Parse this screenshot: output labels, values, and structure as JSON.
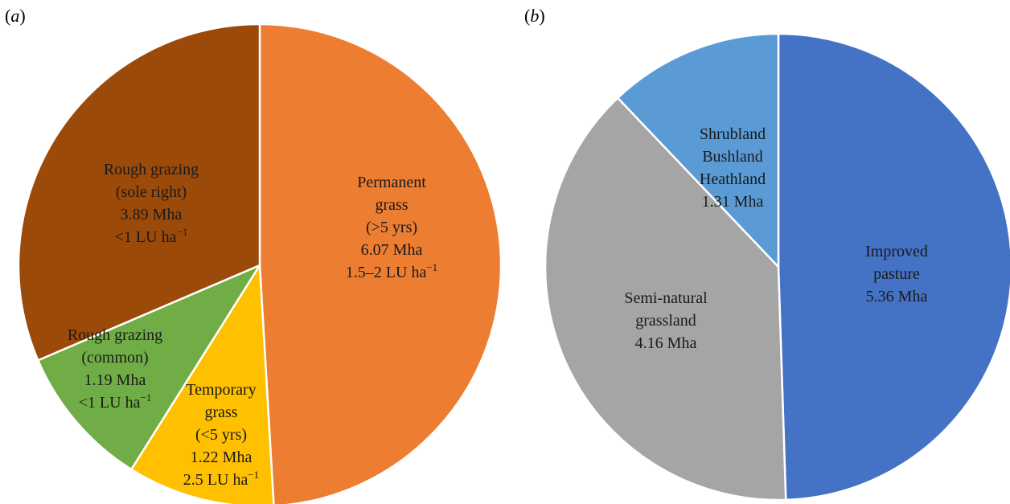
{
  "chart_data": [
    {
      "type": "pie",
      "panel": "a",
      "unit": "Mha",
      "start": "12 o'clock",
      "direction": "clockwise",
      "slices": [
        {
          "name": "Permanent grass",
          "value": 6.07,
          "color": "#ED7D31",
          "label_lines": [
            [
              "Permanent"
            ],
            [
              "grass"
            ],
            [
              "(>5 yrs)"
            ],
            [
              "6.07 Mha"
            ],
            [
              "1.5–2 LU ha",
              "−1"
            ]
          ]
        },
        {
          "name": "Temporary grass",
          "value": 1.22,
          "color": "#FFC000",
          "label_lines": [
            [
              "Temporary"
            ],
            [
              "grass"
            ],
            [
              "(<5 yrs)"
            ],
            [
              "1.22 Mha"
            ],
            [
              "2.5 LU ha",
              "−1"
            ]
          ]
        },
        {
          "name": "Rough grazing (common)",
          "value": 1.19,
          "color": "#70AD47",
          "label_lines": [
            [
              "Rough grazing"
            ],
            [
              "(common)"
            ],
            [
              "1.19 Mha"
            ],
            [
              "<1 LU ha",
              "−1"
            ]
          ]
        },
        {
          "name": "Rough grazing (sole right)",
          "value": 3.89,
          "color": "#9C4A0A",
          "label_lines": [
            [
              "Rough grazing"
            ],
            [
              "(sole right)"
            ],
            [
              "3.89 Mha"
            ],
            [
              "<1 LU ha",
              "−1"
            ]
          ]
        }
      ]
    },
    {
      "type": "pie",
      "panel": "b",
      "unit": "Mha",
      "start": "12 o'clock",
      "direction": "clockwise",
      "slices": [
        {
          "name": "Improved pasture",
          "value": 5.36,
          "color": "#4472C4",
          "label_lines": [
            [
              "Improved"
            ],
            [
              "pasture"
            ],
            [
              "5.36 Mha"
            ]
          ]
        },
        {
          "name": "Semi-natural grassland",
          "value": 4.16,
          "color": "#A5A5A5",
          "label_lines": [
            [
              "Semi-natural"
            ],
            [
              "grassland"
            ],
            [
              "4.16 Mha"
            ]
          ]
        },
        {
          "name": "Shrubland Bushland Heathland",
          "value": 1.31,
          "color": "#5B9BD5",
          "label_lines": [
            [
              "Shrubland"
            ],
            [
              "Bushland"
            ],
            [
              "Heathland"
            ],
            [
              "1.31 Mha"
            ]
          ]
        }
      ]
    }
  ]
}
